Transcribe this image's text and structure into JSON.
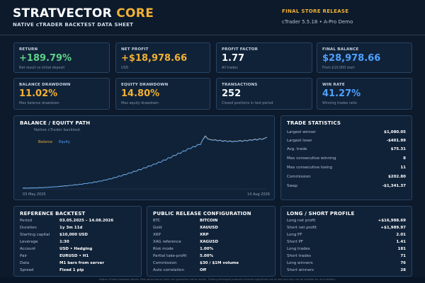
{
  "header": {
    "brand_main": "STRATVECTOR",
    "brand_accent": "CORE",
    "subtitle": "NATIVE cTRADER BACKTEST DATA SHEET",
    "release_label": "FINAL STORE RELEASE",
    "release_meta": "cTrader 5.5.18  •  A-Pro Demo"
  },
  "kpis": [
    {
      "title": "RETURN",
      "value": "+189.79%",
      "sub": "Net result vs initial deposit",
      "color": "#5fd18a"
    },
    {
      "title": "NET PROFIT",
      "value": "+$18,978.66",
      "sub": "USD",
      "color": "#f2b134"
    },
    {
      "title": "PROFIT FACTOR",
      "value": "1.77",
      "sub": "All trades",
      "color": "#f4f8fd"
    },
    {
      "title": "FINAL BALANCE",
      "value": "$28,978.66",
      "sub": "From $10,000 start",
      "color": "#4ea1ff"
    },
    {
      "title": "BALANCE DRAWDOWN",
      "value": "11.02%",
      "sub": "Max balance drawdown",
      "color": "#f2b134"
    },
    {
      "title": "EQUITY DRAWDOWN",
      "value": "14.80%",
      "sub": "Max equity drawdown",
      "color": "#f2b134"
    },
    {
      "title": "TRANSACTIONS",
      "value": "252",
      "sub": "Closed positions in test period",
      "color": "#f4f8fd"
    },
    {
      "title": "WIN RATE",
      "value": "41.27%",
      "sub": "Winning trades ratio",
      "color": "#4ea1ff"
    }
  ],
  "chart_panel": {
    "title": "BALANCE / EQUITY PATH",
    "subtitle": "Native cTrader backtest",
    "legend_balance": "Balance",
    "legend_equity": "Equity",
    "date_start": "03 May 2025",
    "date_end": "14 Aug 2026"
  },
  "chart_data": {
    "type": "line",
    "x_start": "03 May 2025",
    "x_end": "14 Aug 2026",
    "series": [
      {
        "name": "Balance",
        "color": "#f2b134",
        "values": [
          10000,
          10050,
          9990,
          10080,
          10040,
          10120,
          10080,
          10200,
          10150,
          10300,
          10260,
          10420,
          10380,
          10550,
          10500,
          10700,
          10660,
          10880,
          10820,
          11050,
          11010,
          11250,
          11200,
          11470,
          11420,
          11720,
          11680,
          11980,
          11930,
          12300,
          12240,
          12650,
          12600,
          13050,
          12990,
          13500,
          13430,
          14000,
          13950,
          14550,
          14480,
          15100,
          15050,
          15700,
          15620,
          16300,
          16250,
          16950,
          16870,
          17600,
          17550,
          18300,
          18220,
          19000,
          18950,
          19700,
          19620,
          20500,
          20450,
          21350,
          21250,
          22200,
          22150,
          23050,
          22950,
          23900,
          23850,
          24800,
          24700,
          25500,
          25450,
          26300,
          26200,
          28200,
          29500,
          28400,
          28150,
          27900,
          28100,
          27700,
          27900,
          27500,
          27750,
          27400,
          27650,
          27300,
          27600,
          27450,
          27800,
          27500,
          27900,
          27650,
          28100,
          27850,
          28300,
          28000,
          28500,
          28200,
          28650,
          28978.66
        ]
      },
      {
        "name": "Equity",
        "color": "#4ea1ff",
        "values": [
          10000,
          10030,
          9960,
          10060,
          10010,
          10100,
          10050,
          10180,
          10120,
          10280,
          10230,
          10400,
          10350,
          10530,
          10470,
          10680,
          10630,
          10860,
          10790,
          11030,
          10980,
          11230,
          11170,
          11450,
          11390,
          11700,
          11650,
          11960,
          11900,
          12280,
          12210,
          12630,
          12570,
          13030,
          12960,
          13480,
          13400,
          13980,
          13920,
          14530,
          14450,
          15080,
          15020,
          15680,
          15590,
          16280,
          16220,
          16930,
          16840,
          17580,
          17520,
          18280,
          18190,
          18980,
          18920,
          19680,
          19590,
          20480,
          20420,
          21330,
          21220,
          22180,
          22120,
          23030,
          22920,
          23880,
          23820,
          24780,
          24670,
          25480,
          25420,
          26280,
          26170,
          28100,
          29300,
          28300,
          28050,
          27800,
          28000,
          27600,
          27800,
          27400,
          27650,
          27300,
          27550,
          27200,
          27500,
          27350,
          27700,
          27400,
          27800,
          27550,
          28000,
          27750,
          28200,
          27900,
          28400,
          28100,
          28550,
          28900
        ]
      }
    ]
  },
  "trade_stats": {
    "title": "TRADE STATISTICS",
    "rows": [
      {
        "label": "Largest winner",
        "value": "$1,080.05"
      },
      {
        "label": "Largest loser",
        "value": "-$401.99"
      },
      {
        "label": "Avg. trade",
        "value": "$75.31"
      },
      {
        "label": "Max consecutive winning",
        "value": "8"
      },
      {
        "label": "Max consecutive losing",
        "value": "11"
      },
      {
        "label": "Commission",
        "value": "$202.80"
      },
      {
        "label": "Swap",
        "value": "-$1,341.37"
      }
    ]
  },
  "reference": {
    "title": "REFERENCE BACKTEST",
    "rows": [
      {
        "label": "Period",
        "value": "03.05.2025 – 14.08.2026"
      },
      {
        "label": "Duration",
        "value": "1y 3m 11d"
      },
      {
        "label": "Starting capital",
        "value": "$10,000 USD"
      },
      {
        "label": "Leverage",
        "value": "1:30"
      },
      {
        "label": "Account",
        "value": "USD • Hedging"
      },
      {
        "label": "Pair",
        "value": "EURUSD • H1"
      },
      {
        "label": "Data",
        "value": "M1 bars from server"
      },
      {
        "label": "Spread",
        "value": "Fixed 1 pip"
      }
    ]
  },
  "config": {
    "title": "PUBLIC RELEASE CONFIGURATION",
    "rows": [
      {
        "label": "BTC",
        "value": "BITCOIN"
      },
      {
        "label": "Gold",
        "value": "XAUUSD"
      },
      {
        "label": "XRP",
        "value": "XRP"
      },
      {
        "label": "XAG reference",
        "value": "XAGUSD"
      },
      {
        "label": "Risk mode",
        "value": "1.00%"
      },
      {
        "label": "Partial take-profit",
        "value": "5.00%"
      },
      {
        "label": "Commission",
        "value": "$30 / $1M volume"
      },
      {
        "label": "Auto correlation",
        "value": "Off"
      }
    ]
  },
  "long_short": {
    "title": "LONG / SHORT PROFILE",
    "rows": [
      {
        "label": "Long net profit",
        "value": "+$16,988.69"
      },
      {
        "label": "Short net profit",
        "value": "+$1,989.97"
      },
      {
        "label": "Long PF",
        "value": "2.01"
      },
      {
        "label": "Short PF",
        "value": "1.41"
      },
      {
        "label": "Long trades",
        "value": "181"
      },
      {
        "label": "Short trades",
        "value": "71"
      },
      {
        "label": "Long winners",
        "value": "76"
      },
      {
        "label": "Short winners",
        "value": "28"
      }
    ]
  },
  "footer": {
    "text": "Native cTrader backtest results. Past performance does not guarantee future results. Trading leveraged products involves significant risk of loss and may not be suitable for all investors."
  }
}
